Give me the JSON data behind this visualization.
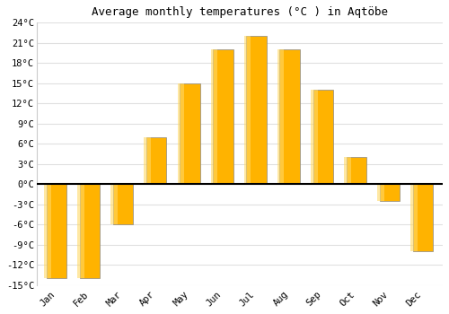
{
  "months": [
    "Jan",
    "Feb",
    "Mar",
    "Apr",
    "May",
    "Jun",
    "Jul",
    "Aug",
    "Sep",
    "Oct",
    "Nov",
    "Dec"
  ],
  "temperatures": [
    -14,
    -14,
    -6,
    7,
    15,
    20,
    22,
    20,
    14,
    4,
    -2.5,
    -10
  ],
  "bar_color_top": "#FFB300",
  "bar_color_bottom": "#FF8C00",
  "bar_edge_color": "#888888",
  "title": "Average monthly temperatures (°C ) in Aqtöbe",
  "ylim": [
    -15,
    24
  ],
  "yticks": [
    -15,
    -12,
    -9,
    -6,
    -3,
    0,
    3,
    6,
    9,
    12,
    15,
    18,
    21,
    24
  ],
  "ytick_labels": [
    "-15°C",
    "-12°C",
    "-9°C",
    "-6°C",
    "-3°C",
    "0°C",
    "3°C",
    "6°C",
    "9°C",
    "12°C",
    "15°C",
    "18°C",
    "21°C",
    "24°C"
  ],
  "plot_bg_color": "#ffffff",
  "outer_bg_color": "#ffffff",
  "grid_color": "#e0e0e0",
  "zero_line_color": "#000000",
  "title_fontsize": 9,
  "tick_fontsize": 7.5,
  "bar_width": 0.6
}
